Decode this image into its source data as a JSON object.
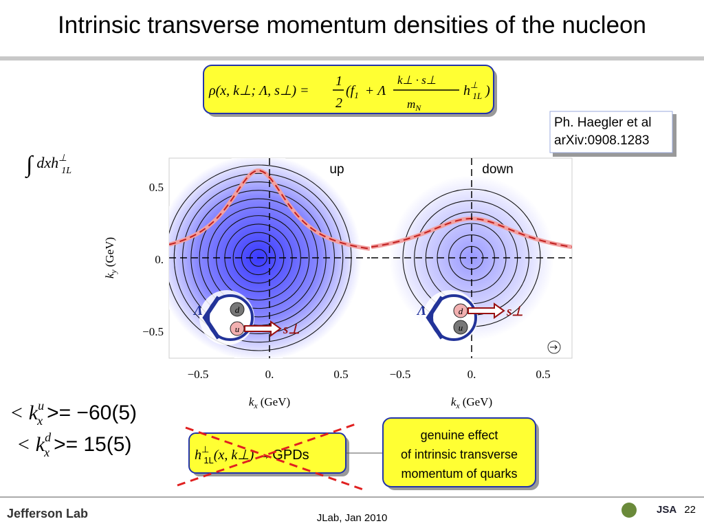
{
  "title": "Intrinsic transverse momentum densities of the nucleon",
  "formula": {
    "lhs": "ρ(x, k⊥; Λ, s⊥) =",
    "half_num": "1",
    "half_den": "2",
    "open": "(f",
    "open_sub": "1",
    "plus": "+ Λ",
    "frac_num": "k⊥ · s⊥",
    "frac_den": "m",
    "frac_den_sub": "N",
    "h": "h",
    "h_sup": "⊥",
    "h_sub": "1L",
    "close": ")"
  },
  "reference": [
    "Ph. Haegler et al",
    "arXiv:0908.1283"
  ],
  "integral": {
    "sign": "∫",
    "body": "dxh",
    "sup": "⊥",
    "sub": "1L"
  },
  "plot": {
    "panels": [
      {
        "label": "up",
        "lambda": "Λ",
        "quarks": [
          "d",
          "u"
        ],
        "spin": "s⊥"
      },
      {
        "label": "down",
        "lambda": "Λ",
        "quarks": [
          "d",
          "u"
        ],
        "spin": "s⊥"
      }
    ],
    "y_label": {
      "k": "k",
      "sub": "y",
      "unit": "(GeV)"
    },
    "x_label": {
      "k": "k",
      "sub": "x",
      "unit": "(GeV)"
    },
    "yticks": [
      "0.5",
      "0.",
      "−0.5"
    ],
    "xticks": [
      "−0.5",
      "0.",
      "0.5"
    ]
  },
  "moments": [
    {
      "lhs": "< k",
      "sup": "u",
      "sub": "x",
      "rhs": ">= −60(5)"
    },
    {
      "lhs": "< k",
      "sup": "d",
      "sub": "x",
      "rhs": ">= 15(5)"
    }
  ],
  "crossed": {
    "h": "h",
    "sup": "⊥",
    "sub": "1L",
    "args": "(x, k⊥) →",
    "gpds": "GPDs"
  },
  "callout": [
    "genuine effect",
    "of intrinsic transverse",
    "momentum of quarks"
  ],
  "footer": {
    "logo": "Jefferson Lab",
    "date": "JLab, Jan 2010",
    "jsa": "JSA",
    "page": "22"
  }
}
